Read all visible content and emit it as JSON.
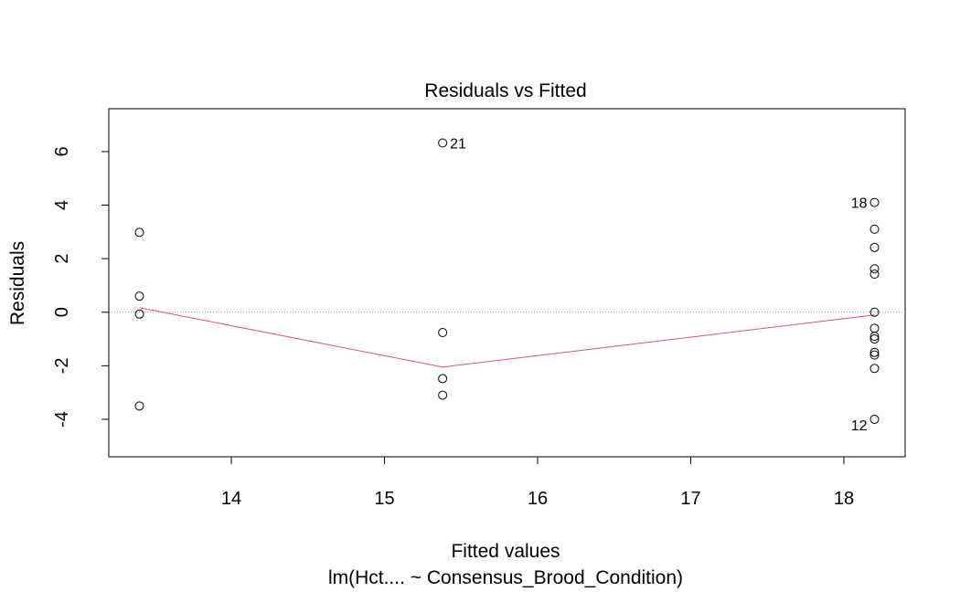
{
  "chart_data": {
    "type": "scatter",
    "title": "Residuals vs Fitted",
    "xlabel": "Fitted values",
    "ylabel": "Residuals",
    "subtitle": "lm(Hct.... ~ Consensus_Brood_Condition)",
    "xlim": [
      13.2,
      18.4
    ],
    "ylim": [
      -5.4,
      7.6
    ],
    "xticks": [
      14,
      15,
      16,
      17,
      18
    ],
    "yticks": [
      -4,
      -2,
      0,
      2,
      4,
      6
    ],
    "reference_line_y": 0,
    "colors": {
      "points": "#000000",
      "smooth": "#df536b",
      "refline": "#999999",
      "frame": "#000000"
    },
    "points": [
      {
        "x": 13.4,
        "y": 2.98
      },
      {
        "x": 13.4,
        "y": 0.6
      },
      {
        "x": 13.4,
        "y": -0.07
      },
      {
        "x": 13.4,
        "y": -3.5
      },
      {
        "x": 15.38,
        "y": 6.32,
        "label": "21"
      },
      {
        "x": 15.38,
        "y": -0.76
      },
      {
        "x": 15.38,
        "y": -2.48
      },
      {
        "x": 15.38,
        "y": -3.1
      },
      {
        "x": 18.2,
        "y": 4.1,
        "label": "18"
      },
      {
        "x": 18.2,
        "y": 3.1
      },
      {
        "x": 18.2,
        "y": 2.42
      },
      {
        "x": 18.2,
        "y": 1.62
      },
      {
        "x": 18.2,
        "y": 1.42
      },
      {
        "x": 18.2,
        "y": 0.0
      },
      {
        "x": 18.2,
        "y": -0.6
      },
      {
        "x": 18.2,
        "y": -0.9
      },
      {
        "x": 18.2,
        "y": -1.0
      },
      {
        "x": 18.2,
        "y": -1.5
      },
      {
        "x": 18.2,
        "y": -1.6
      },
      {
        "x": 18.2,
        "y": -2.1
      },
      {
        "x": 18.2,
        "y": -4.0,
        "label": "12"
      }
    ],
    "smooth_line": [
      {
        "x": 13.4,
        "y": 0.17
      },
      {
        "x": 15.38,
        "y": -2.05
      },
      {
        "x": 18.2,
        "y": -0.1
      }
    ]
  }
}
